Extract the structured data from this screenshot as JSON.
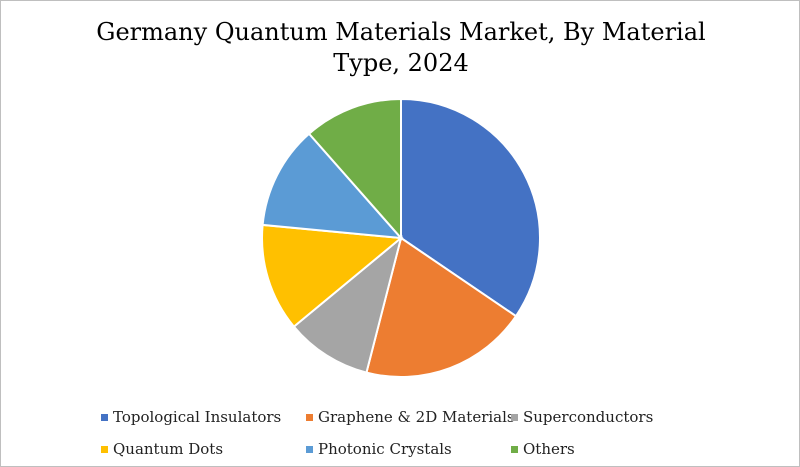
{
  "chart_data": {
    "type": "pie",
    "title": "Germany Quantum Materials Market, By Material Type, 2024",
    "categories": [
      "Topological Insulators",
      "Graphene & 2D Materials",
      "Superconductors",
      "Quantum Dots",
      "Photonic Crystals",
      "Others"
    ],
    "values": [
      34.5,
      19.5,
      10.0,
      12.5,
      12.0,
      11.5
    ],
    "colors": [
      "#4472C4",
      "#ED7D31",
      "#A5A5A5",
      "#FFC000",
      "#5B9BD5",
      "#70AD47"
    ],
    "legend": "bottom",
    "start_angle_deg": 0,
    "direction": "clockwise"
  }
}
